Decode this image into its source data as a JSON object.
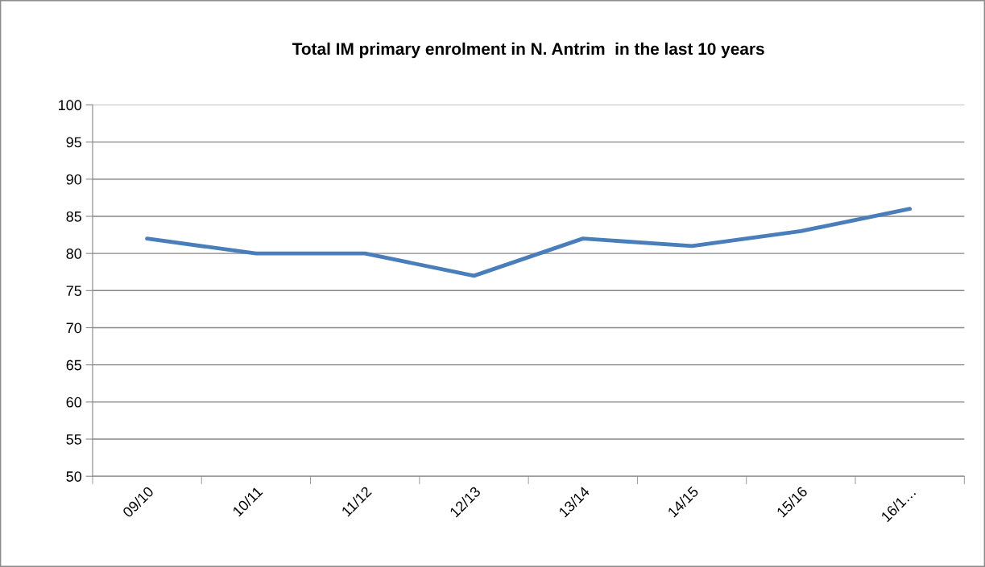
{
  "chart_data": {
    "type": "line",
    "title": "Total IM primary enrolment in N. Antrim  in the last 10 years",
    "categories": [
      "09/10",
      "10/11",
      "11/12",
      "12/13",
      "13/14",
      "14/15",
      "15/16",
      "16/1…"
    ],
    "series": [
      {
        "color": "#4a7ebb",
        "values": [
          82,
          80,
          80,
          77,
          82,
          81,
          83,
          86
        ]
      }
    ],
    "ylim": [
      50,
      100
    ],
    "yticks": [
      50,
      55,
      60,
      65,
      70,
      75,
      80,
      85,
      90,
      95,
      100
    ],
    "grid": "y",
    "marker": "none",
    "line_style": "solid"
  }
}
